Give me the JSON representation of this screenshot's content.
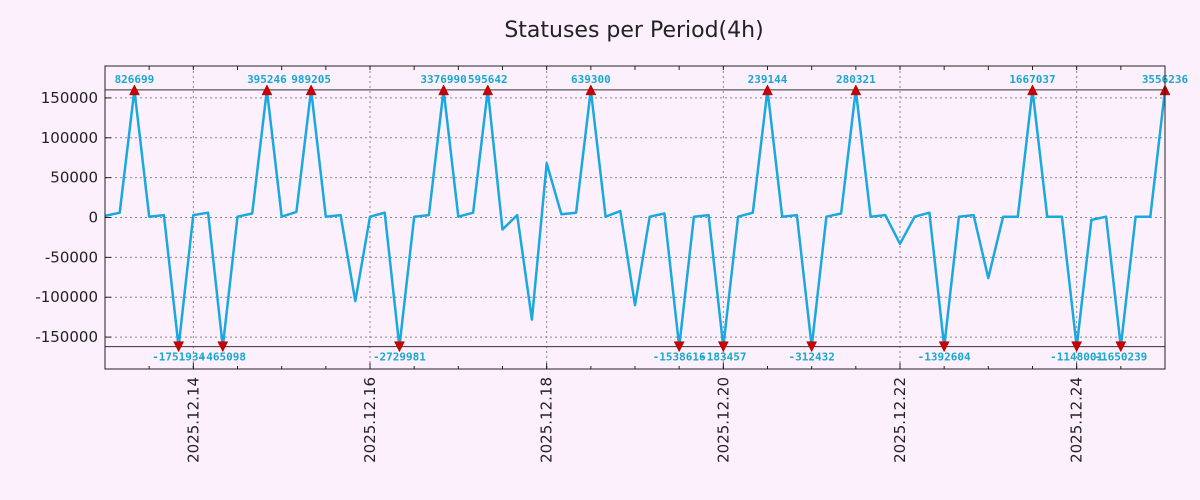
{
  "chart_data": {
    "type": "line",
    "title": "Statuses per Period(4h)",
    "xlabel": "",
    "ylabel": "",
    "ylim": [
      -190000,
      190000
    ],
    "yticks": [
      150000,
      100000,
      50000,
      0,
      -50000,
      -100000,
      -150000
    ],
    "xticks": [
      "2025.12.14",
      "2025.12.16",
      "2025.12.18",
      "2025.12.20",
      "2025.12.22",
      "2025.12.24"
    ],
    "grid": true,
    "clip_limits": [
      160000,
      -162000
    ],
    "series": [
      {
        "values": [
          2000,
          6000,
          160000,
          1000,
          3000,
          -162000,
          3000,
          6000,
          -162000,
          1000,
          5000,
          160000,
          1000,
          7000,
          160000,
          1000,
          3000,
          -105000,
          1000,
          6000,
          -162000,
          1000,
          3000,
          160000,
          1000,
          6000,
          160000,
          -15000,
          3000,
          -128000,
          68000,
          4000,
          6000,
          160000,
          1000,
          8000,
          -110000,
          1000,
          5000,
          -162000,
          1000,
          3000,
          -162000,
          1000,
          6000,
          160000,
          1000,
          3000,
          -162000,
          1000,
          5000,
          160000,
          1000,
          3000,
          -33000,
          1000,
          6000,
          -162000,
          1000,
          3000,
          -76000,
          1000,
          1000,
          160000,
          1000,
          1000,
          -162000,
          -3000,
          1000,
          -162000,
          1000,
          1000,
          160000
        ]
      }
    ],
    "peak_labels": [
      {
        "index": 2,
        "text": "826699",
        "pos": "top"
      },
      {
        "index": 5,
        "text": "-1751934",
        "pos": "bottom"
      },
      {
        "index": 8,
        "text": "-465098",
        "pos": "bottom"
      },
      {
        "index": 11,
        "text": "395246",
        "pos": "top"
      },
      {
        "index": 14,
        "text": "989205",
        "pos": "top"
      },
      {
        "index": 20,
        "text": "-2729981",
        "pos": "bottom"
      },
      {
        "index": 23,
        "text": "3376990",
        "pos": "top"
      },
      {
        "index": 26,
        "text": "595642",
        "pos": "top"
      },
      {
        "index": 33,
        "text": "639300",
        "pos": "top"
      },
      {
        "index": 39,
        "text": "-1538616",
        "pos": "bottom"
      },
      {
        "index": 42,
        "text": "-183457",
        "pos": "bottom"
      },
      {
        "index": 45,
        "text": "239144",
        "pos": "top"
      },
      {
        "index": 48,
        "text": "-312432",
        "pos": "bottom"
      },
      {
        "index": 51,
        "text": "280321",
        "pos": "top"
      },
      {
        "index": 57,
        "text": "-1392604",
        "pos": "bottom"
      },
      {
        "index": 63,
        "text": "1667037",
        "pos": "top"
      },
      {
        "index": 66,
        "text": "-1148001",
        "pos": "bottom"
      },
      {
        "index": 69,
        "text": "-1650239",
        "pos": "bottom"
      },
      {
        "index": 72,
        "text": "3556236",
        "pos": "top"
      }
    ],
    "colors": {
      "line": "#19a8e0",
      "marker": "#cc0000",
      "label": "#19a8cc",
      "background": "#fdf0fd",
      "grid": "#888888"
    }
  }
}
